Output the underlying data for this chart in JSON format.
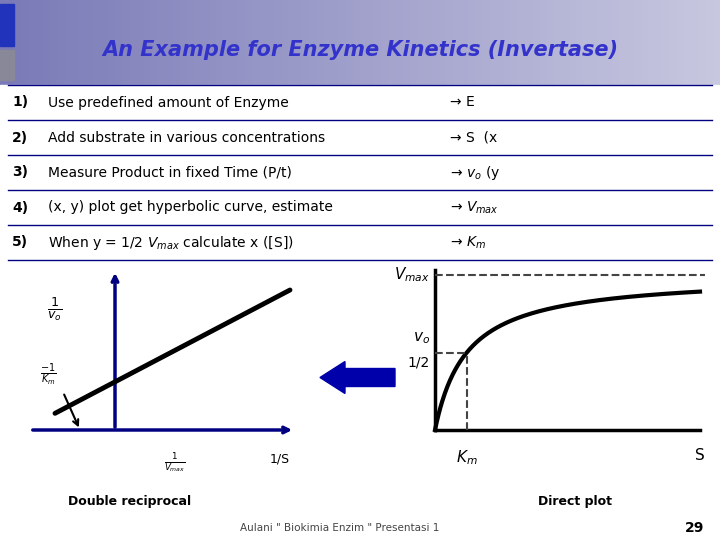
{
  "title": "An Example for Enzyme Kinetics (Invertase)",
  "title_color": "#3333cc",
  "title_fontsize": 15,
  "bg_color": "#e0e0ec",
  "rows": [
    {
      "num": "1)",
      "text": "Use predefined amount of Enzyme",
      "arrow": "→ E"
    },
    {
      "num": "2)",
      "text": "Add substrate in various concentrations",
      "arrow": "→ S  (x"
    },
    {
      "num": "3)",
      "text": "Measure Product in fixed Time (P/t)",
      "arrow": "→ $v_o$ (y"
    },
    {
      "num": "4)",
      "text": "(x, y) plot get hyperbolic curve, estimate",
      "arrow": "→ $V_{max}$"
    },
    {
      "num": "5)",
      "text": "When y = 1/2 $V_{max}$ calculate x ([S])",
      "arrow": "→ $K_m$"
    }
  ],
  "footer": "Aulani \" Biokimia Enzim \" Presentasi 1",
  "page_num": "29",
  "blue": "#000080",
  "black": "#000000",
  "dark_navy": "#0000aa"
}
